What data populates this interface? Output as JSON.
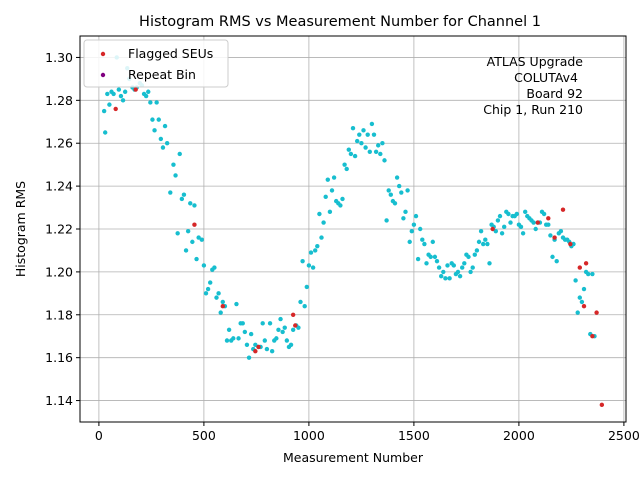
{
  "chart_data": {
    "type": "scatter",
    "title": "Histogram RMS vs Measurement Number for Channel 1",
    "xlabel": "Measurement Number",
    "ylabel": "Histogram RMS",
    "xlim": [
      -90,
      2510
    ],
    "ylim": [
      1.13,
      1.31
    ],
    "xticks": [
      0,
      500,
      1000,
      1500,
      2000,
      2500
    ],
    "xtick_labels": [
      "0",
      "500",
      "1000",
      "1500",
      "2000",
      "2500"
    ],
    "yticks": [
      1.14,
      1.16,
      1.18,
      1.2,
      1.22,
      1.24,
      1.26,
      1.28,
      1.3
    ],
    "ytick_labels": [
      "1.14",
      "1.16",
      "1.18",
      "1.20",
      "1.22",
      "1.24",
      "1.26",
      "1.28",
      "1.30"
    ],
    "grid": true,
    "legend_position": "top-left",
    "annotation_lines": [
      "ATLAS Upgrade",
      "COLUTAv4",
      "Board 92",
      "Chip 1, Run 210"
    ],
    "colors": {
      "normal": "#17becf",
      "flagged": "#d62728",
      "repeat": "#800080"
    },
    "series": [
      {
        "name": "",
        "color": "#17becf",
        "points": [
          [
            25,
            1.275
          ],
          [
            30,
            1.265
          ],
          [
            40,
            1.283
          ],
          [
            50,
            1.278
          ],
          [
            60,
            1.284
          ],
          [
            70,
            1.283
          ],
          [
            85,
            1.3
          ],
          [
            95,
            1.285
          ],
          [
            105,
            1.282
          ],
          [
            115,
            1.28
          ],
          [
            125,
            1.284
          ],
          [
            135,
            1.295
          ],
          [
            145,
            1.29
          ],
          [
            160,
            1.286
          ],
          [
            170,
            1.285
          ],
          [
            180,
            1.286
          ],
          [
            195,
            1.288
          ],
          [
            205,
            1.287
          ],
          [
            215,
            1.283
          ],
          [
            225,
            1.282
          ],
          [
            235,
            1.284
          ],
          [
            245,
            1.279
          ],
          [
            255,
            1.271
          ],
          [
            265,
            1.266
          ],
          [
            275,
            1.279
          ],
          [
            285,
            1.271
          ],
          [
            295,
            1.262
          ],
          [
            305,
            1.258
          ],
          [
            315,
            1.268
          ],
          [
            325,
            1.26
          ],
          [
            340,
            1.237
          ],
          [
            355,
            1.25
          ],
          [
            365,
            1.245
          ],
          [
            375,
            1.218
          ],
          [
            385,
            1.255
          ],
          [
            395,
            1.234
          ],
          [
            405,
            1.236
          ],
          [
            415,
            1.21
          ],
          [
            425,
            1.219
          ],
          [
            435,
            1.232
          ],
          [
            445,
            1.214
          ],
          [
            455,
            1.231
          ],
          [
            465,
            1.206
          ],
          [
            475,
            1.216
          ],
          [
            490,
            1.215
          ],
          [
            500,
            1.203
          ],
          [
            510,
            1.19
          ],
          [
            520,
            1.192
          ],
          [
            530,
            1.195
          ],
          [
            540,
            1.201
          ],
          [
            550,
            1.202
          ],
          [
            560,
            1.188
          ],
          [
            570,
            1.19
          ],
          [
            580,
            1.181
          ],
          [
            590,
            1.186
          ],
          [
            600,
            1.184
          ],
          [
            610,
            1.168
          ],
          [
            620,
            1.173
          ],
          [
            630,
            1.168
          ],
          [
            640,
            1.169
          ],
          [
            655,
            1.185
          ],
          [
            665,
            1.169
          ],
          [
            675,
            1.176
          ],
          [
            685,
            1.176
          ],
          [
            695,
            1.172
          ],
          [
            705,
            1.166
          ],
          [
            715,
            1.16
          ],
          [
            725,
            1.171
          ],
          [
            735,
            1.164
          ],
          [
            745,
            1.166
          ],
          [
            760,
            1.165
          ],
          [
            770,
            1.165
          ],
          [
            780,
            1.176
          ],
          [
            790,
            1.168
          ],
          [
            800,
            1.164
          ],
          [
            815,
            1.176
          ],
          [
            825,
            1.163
          ],
          [
            835,
            1.168
          ],
          [
            845,
            1.169
          ],
          [
            855,
            1.173
          ],
          [
            865,
            1.178
          ],
          [
            875,
            1.172
          ],
          [
            885,
            1.174
          ],
          [
            895,
            1.168
          ],
          [
            905,
            1.165
          ],
          [
            915,
            1.166
          ],
          [
            925,
            1.173
          ],
          [
            940,
            1.175
          ],
          [
            950,
            1.174
          ],
          [
            960,
            1.186
          ],
          [
            970,
            1.205
          ],
          [
            980,
            1.184
          ],
          [
            990,
            1.193
          ],
          [
            1000,
            1.203
          ],
          [
            1010,
            1.209
          ],
          [
            1020,
            1.202
          ],
          [
            1030,
            1.21
          ],
          [
            1040,
            1.212
          ],
          [
            1050,
            1.227
          ],
          [
            1060,
            1.216
          ],
          [
            1070,
            1.223
          ],
          [
            1080,
            1.235
          ],
          [
            1090,
            1.243
          ],
          [
            1100,
            1.228
          ],
          [
            1110,
            1.238
          ],
          [
            1120,
            1.244
          ],
          [
            1130,
            1.233
          ],
          [
            1140,
            1.232
          ],
          [
            1150,
            1.231
          ],
          [
            1160,
            1.234
          ],
          [
            1170,
            1.25
          ],
          [
            1180,
            1.248
          ],
          [
            1190,
            1.257
          ],
          [
            1200,
            1.255
          ],
          [
            1210,
            1.267
          ],
          [
            1220,
            1.254
          ],
          [
            1230,
            1.261
          ],
          [
            1240,
            1.264
          ],
          [
            1250,
            1.26
          ],
          [
            1260,
            1.266
          ],
          [
            1270,
            1.258
          ],
          [
            1280,
            1.264
          ],
          [
            1290,
            1.256
          ],
          [
            1300,
            1.269
          ],
          [
            1310,
            1.264
          ],
          [
            1320,
            1.256
          ],
          [
            1330,
            1.259
          ],
          [
            1340,
            1.255
          ],
          [
            1350,
            1.26
          ],
          [
            1360,
            1.252
          ],
          [
            1370,
            1.224
          ],
          [
            1380,
            1.238
          ],
          [
            1390,
            1.236
          ],
          [
            1400,
            1.233
          ],
          [
            1410,
            1.232
          ],
          [
            1420,
            1.244
          ],
          [
            1430,
            1.24
          ],
          [
            1440,
            1.237
          ],
          [
            1450,
            1.225
          ],
          [
            1460,
            1.228
          ],
          [
            1470,
            1.238
          ],
          [
            1480,
            1.214
          ],
          [
            1490,
            1.219
          ],
          [
            1500,
            1.222
          ],
          [
            1510,
            1.226
          ],
          [
            1520,
            1.206
          ],
          [
            1530,
            1.22
          ],
          [
            1540,
            1.215
          ],
          [
            1550,
            1.213
          ],
          [
            1560,
            1.204
          ],
          [
            1570,
            1.208
          ],
          [
            1580,
            1.207
          ],
          [
            1590,
            1.214
          ],
          [
            1600,
            1.207
          ],
          [
            1610,
            1.205
          ],
          [
            1620,
            1.202
          ],
          [
            1630,
            1.198
          ],
          [
            1640,
            1.2
          ],
          [
            1650,
            1.197
          ],
          [
            1660,
            1.203
          ],
          [
            1670,
            1.197
          ],
          [
            1680,
            1.204
          ],
          [
            1690,
            1.203
          ],
          [
            1700,
            1.199
          ],
          [
            1710,
            1.2
          ],
          [
            1720,
            1.198
          ],
          [
            1730,
            1.202
          ],
          [
            1740,
            1.204
          ],
          [
            1750,
            1.208
          ],
          [
            1760,
            1.207
          ],
          [
            1770,
            1.2
          ],
          [
            1780,
            1.202
          ],
          [
            1790,
            1.208
          ],
          [
            1800,
            1.21
          ],
          [
            1810,
            1.214
          ],
          [
            1820,
            1.219
          ],
          [
            1830,
            1.213
          ],
          [
            1840,
            1.215
          ],
          [
            1850,
            1.213
          ],
          [
            1860,
            1.204
          ],
          [
            1870,
            1.222
          ],
          [
            1880,
            1.221
          ],
          [
            1890,
            1.219
          ],
          [
            1900,
            1.224
          ],
          [
            1910,
            1.226
          ],
          [
            1920,
            1.218
          ],
          [
            1930,
            1.221
          ],
          [
            1940,
            1.228
          ],
          [
            1950,
            1.227
          ],
          [
            1960,
            1.223
          ],
          [
            1970,
            1.226
          ],
          [
            1980,
            1.226
          ],
          [
            1990,
            1.227
          ],
          [
            2000,
            1.222
          ],
          [
            2010,
            1.221
          ],
          [
            2020,
            1.218
          ],
          [
            2030,
            1.228
          ],
          [
            2040,
            1.226
          ],
          [
            2050,
            1.225
          ],
          [
            2060,
            1.224
          ],
          [
            2070,
            1.223
          ],
          [
            2080,
            1.22
          ],
          [
            2090,
            1.223
          ],
          [
            2100,
            1.223
          ],
          [
            2110,
            1.228
          ],
          [
            2120,
            1.227
          ],
          [
            2130,
            1.222
          ],
          [
            2140,
            1.222
          ],
          [
            2150,
            1.217
          ],
          [
            2160,
            1.207
          ],
          [
            2170,
            1.215
          ],
          [
            2180,
            1.205
          ],
          [
            2190,
            1.218
          ],
          [
            2200,
            1.219
          ],
          [
            2210,
            1.216
          ],
          [
            2220,
            1.215
          ],
          [
            2230,
            1.215
          ],
          [
            2240,
            1.214
          ],
          [
            2250,
            1.212
          ],
          [
            2260,
            1.213
          ],
          [
            2270,
            1.196
          ],
          [
            2280,
            1.181
          ],
          [
            2290,
            1.188
          ],
          [
            2300,
            1.186
          ],
          [
            2310,
            1.192
          ],
          [
            2320,
            1.2
          ],
          [
            2330,
            1.199
          ],
          [
            2340,
            1.171
          ],
          [
            2350,
            1.199
          ],
          [
            2360,
            1.17
          ]
        ]
      },
      {
        "name": "Flagged SEUs",
        "color": "#d62728",
        "points": [
          [
            80,
            1.276
          ],
          [
            175,
            1.285
          ],
          [
            455,
            1.222
          ],
          [
            590,
            1.184
          ],
          [
            745,
            1.163
          ],
          [
            760,
            1.165
          ],
          [
            925,
            1.18
          ],
          [
            935,
            1.175
          ],
          [
            1875,
            1.22
          ],
          [
            2090,
            1.223
          ],
          [
            2140,
            1.225
          ],
          [
            2170,
            1.216
          ],
          [
            2210,
            1.229
          ],
          [
            2245,
            1.213
          ],
          [
            2290,
            1.202
          ],
          [
            2310,
            1.184
          ],
          [
            2320,
            1.204
          ],
          [
            2350,
            1.17
          ],
          [
            2370,
            1.181
          ],
          [
            2395,
            1.138
          ]
        ]
      },
      {
        "name": "Repeat Bin",
        "color": "#800080",
        "points": []
      }
    ]
  }
}
